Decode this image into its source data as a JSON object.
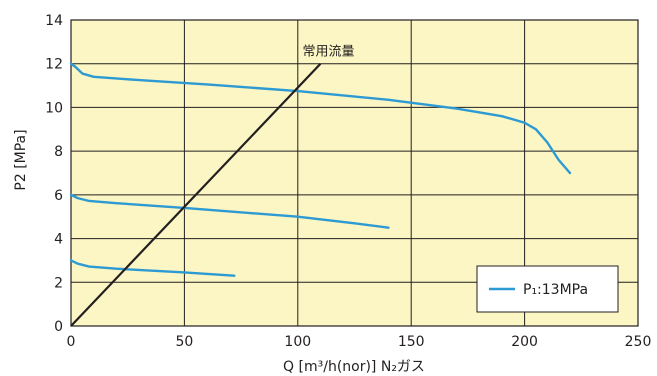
{
  "chart_data": {
    "type": "line",
    "title": "",
    "xlabel": "Q [m³/h(nor)] N₂ガス",
    "ylabel": "P2 [MPa]",
    "xlim": [
      0,
      250
    ],
    "ylim": [
      0,
      14
    ],
    "x_ticks": [
      0,
      50,
      100,
      150,
      200,
      250
    ],
    "y_ticks": [
      0,
      2,
      4,
      6,
      8,
      10,
      12,
      14
    ],
    "x_tick_labels": [
      "0",
      "50",
      "100",
      "150",
      "200",
      "250"
    ],
    "y_tick_labels": [
      "0",
      "2",
      "4",
      "6",
      "8",
      "10",
      "12",
      "14"
    ],
    "grid": true,
    "background_color": "#fbf6c3",
    "legend": {
      "label": "P₁:13MPa",
      "position": "bottom-right",
      "color": "#2e9ad3"
    },
    "series": [
      {
        "color": "#2e9ad3",
        "x": [
          0,
          2,
          5,
          10,
          30,
          60,
          100,
          140,
          170,
          190,
          200,
          205,
          210,
          215,
          220
        ],
        "y": [
          12.0,
          11.85,
          11.55,
          11.4,
          11.25,
          11.05,
          10.75,
          10.35,
          9.95,
          9.6,
          9.3,
          9.0,
          8.4,
          7.6,
          7.0
        ]
      },
      {
        "color": "#2e9ad3",
        "x": [
          0,
          3,
          8,
          20,
          50,
          100,
          125,
          140
        ],
        "y": [
          6.0,
          5.85,
          5.72,
          5.62,
          5.4,
          5.0,
          4.7,
          4.5
        ]
      },
      {
        "color": "#2e9ad3",
        "x": [
          0,
          3,
          8,
          20,
          50,
          72
        ],
        "y": [
          3.0,
          2.85,
          2.72,
          2.62,
          2.45,
          2.3
        ]
      }
    ],
    "reference_line": {
      "label": "常用流量",
      "color": "#231f20",
      "x": [
        0,
        110
      ],
      "y": [
        0,
        12
      ]
    }
  }
}
